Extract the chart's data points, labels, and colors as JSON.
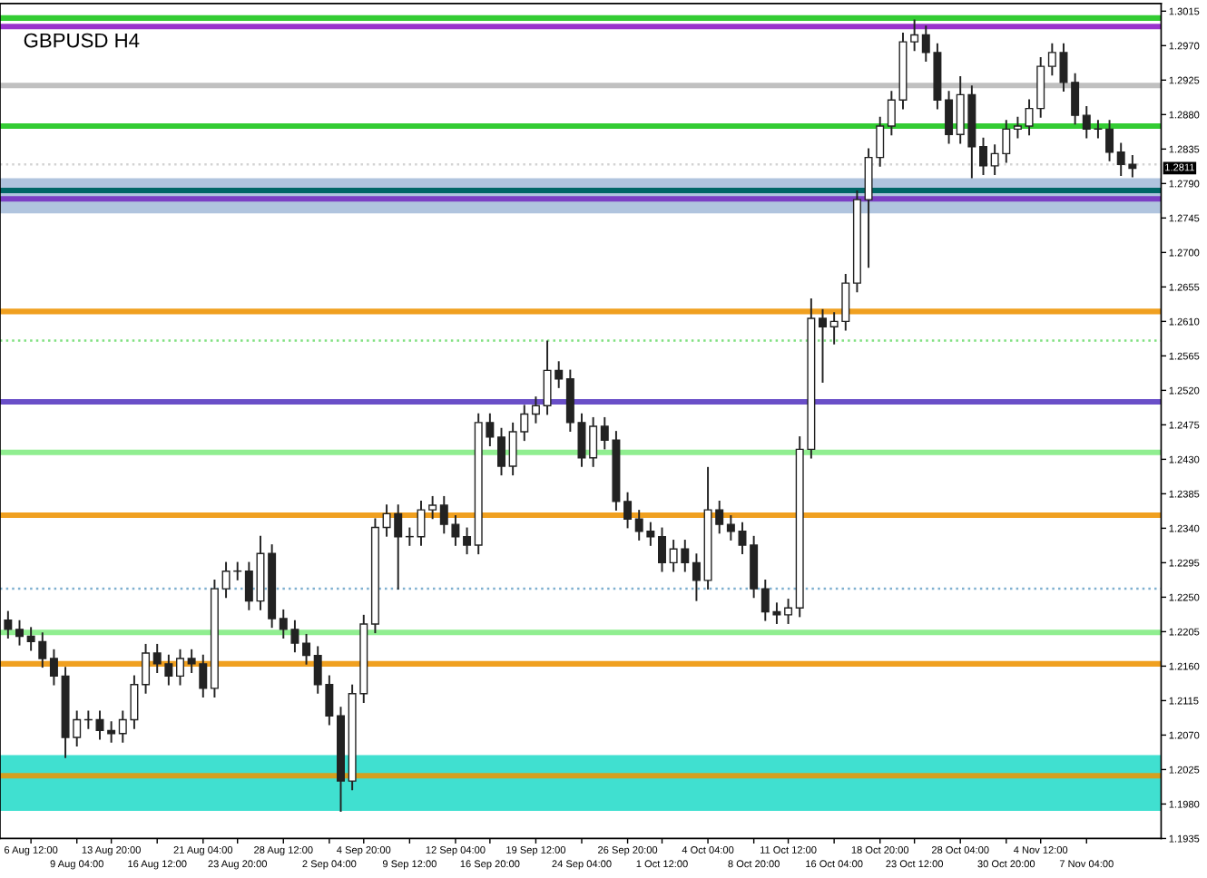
{
  "chart_data": {
    "type": "candlestick",
    "title": "GBPUSD H4",
    "categories": [
      null,
      null,
      "6 Aug 12:00",
      null,
      null,
      null,
      "9 Aug 04:00",
      null,
      null,
      "13 Aug 20:00",
      null,
      null,
      null,
      "16 Aug 12:00",
      null,
      null,
      null,
      "21 Aug 04:00",
      null,
      null,
      "23 Aug 20:00",
      null,
      null,
      null,
      "28 Aug 12:00",
      null,
      null,
      null,
      "2 Sep 04:00",
      null,
      null,
      "4 Sep 20:00",
      null,
      null,
      null,
      "9 Sep 12:00",
      null,
      null,
      null,
      "12 Sep 04:00",
      null,
      null,
      "16 Sep 20:00",
      null,
      null,
      null,
      "19 Sep 12:00",
      null,
      null,
      null,
      "24 Sep 04:00",
      null,
      null,
      null,
      "26 Sep 20:00",
      null,
      null,
      "1 Oct 12:00",
      null,
      null,
      null,
      "4 Oct 04:00",
      null,
      null,
      null,
      "8 Oct 20:00",
      null,
      null,
      "11 Oct 12:00",
      null,
      null,
      null,
      "16 Oct 04:00",
      null,
      null,
      null,
      "18 Oct 20:00",
      null,
      null,
      "23 Oct 12:00",
      null,
      null,
      null,
      "28 Oct 04:00",
      null,
      null,
      null,
      "30 Oct 20:00",
      null,
      null,
      "4 Nov 12:00",
      null,
      null,
      null,
      "7 Nov 04:00",
      null,
      null,
      null,
      null
    ],
    "ohlc": [
      [
        1.222,
        1.2232,
        1.2196,
        1.2208
      ],
      [
        1.2208,
        1.222,
        1.2187,
        1.2199
      ],
      [
        1.2199,
        1.2211,
        1.218,
        1.2192
      ],
      [
        1.2192,
        1.2204,
        1.2158,
        1.217
      ],
      [
        1.217,
        1.2182,
        1.2135,
        1.2147
      ],
      [
        1.2147,
        1.2159,
        1.204,
        1.2067
      ],
      [
        1.2067,
        1.2102,
        1.2055,
        1.209
      ],
      [
        1.209,
        1.2102,
        1.2078,
        1.209
      ],
      [
        1.209,
        1.2102,
        1.2064,
        1.2076
      ],
      [
        1.2076,
        1.2088,
        1.206,
        1.2072
      ],
      [
        1.2072,
        1.2102,
        1.206,
        1.209
      ],
      [
        1.209,
        1.2148,
        1.2078,
        1.2136
      ],
      [
        1.2136,
        1.2189,
        1.2124,
        1.2177
      ],
      [
        1.2177,
        1.2189,
        1.2151,
        1.2163
      ],
      [
        1.2163,
        1.2175,
        1.2135,
        1.2147
      ],
      [
        1.2147,
        1.2182,
        1.2135,
        1.217
      ],
      [
        1.217,
        1.2182,
        1.2151,
        1.2163
      ],
      [
        1.2163,
        1.2175,
        1.2119,
        1.2131
      ],
      [
        1.2131,
        1.2273,
        1.2119,
        1.2261
      ],
      [
        1.2261,
        1.2296,
        1.2249,
        1.2284
      ],
      [
        1.2284,
        1.2296,
        1.2272,
        1.2284
      ],
      [
        1.2284,
        1.2296,
        1.2233,
        1.2245
      ],
      [
        1.2245,
        1.233,
        1.2233,
        1.2307
      ],
      [
        1.2307,
        1.2319,
        1.221,
        1.2222
      ],
      [
        1.2222,
        1.2234,
        1.2196,
        1.2208
      ],
      [
        1.2208,
        1.222,
        1.2178,
        1.219
      ],
      [
        1.219,
        1.2202,
        1.2162,
        1.2174
      ],
      [
        1.2174,
        1.2186,
        1.2124,
        1.2136
      ],
      [
        1.2136,
        1.2148,
        1.2083,
        1.2095
      ],
      [
        1.2095,
        1.2107,
        1.197,
        1.201
      ],
      [
        1.201,
        1.2136,
        1.1998,
        1.2124
      ],
      [
        1.2124,
        1.2227,
        1.2112,
        1.2215
      ],
      [
        1.2215,
        1.2353,
        1.2203,
        1.2341
      ],
      [
        1.2341,
        1.2371,
        1.2329,
        1.2359
      ],
      [
        1.2359,
        1.2371,
        1.226,
        1.2329
      ],
      [
        1.2329,
        1.2341,
        1.2317,
        1.2329
      ],
      [
        1.2329,
        1.2376,
        1.2317,
        1.2364
      ],
      [
        1.2364,
        1.2382,
        1.2352,
        1.237
      ],
      [
        1.237,
        1.2382,
        1.2333,
        1.2345
      ],
      [
        1.2345,
        1.2357,
        1.2317,
        1.2329
      ],
      [
        1.2329,
        1.2341,
        1.2306,
        1.2318
      ],
      [
        1.2318,
        1.249,
        1.2306,
        1.2478
      ],
      [
        1.2478,
        1.249,
        1.2447,
        1.2459
      ],
      [
        1.2459,
        1.2471,
        1.2409,
        1.2421
      ],
      [
        1.2421,
        1.2478,
        1.2409,
        1.2466
      ],
      [
        1.2466,
        1.2501,
        1.2454,
        1.2489
      ],
      [
        1.2489,
        1.2512,
        1.2477,
        1.25
      ],
      [
        1.25,
        1.2585,
        1.2488,
        1.2546
      ],
      [
        1.2546,
        1.2558,
        1.2523,
        1.2535
      ],
      [
        1.2535,
        1.2547,
        1.2466,
        1.2478
      ],
      [
        1.2478,
        1.249,
        1.242,
        1.2432
      ],
      [
        1.2432,
        1.2485,
        1.242,
        1.2473
      ],
      [
        1.2473,
        1.2485,
        1.2443,
        1.2455
      ],
      [
        1.2455,
        1.2467,
        1.2363,
        1.2375
      ],
      [
        1.2375,
        1.2387,
        1.234,
        1.2352
      ],
      [
        1.2352,
        1.2364,
        1.2324,
        1.2336
      ],
      [
        1.2336,
        1.2348,
        1.2317,
        1.2329
      ],
      [
        1.2329,
        1.2341,
        1.2283,
        1.2295
      ],
      [
        1.2295,
        1.2325,
        1.2283,
        1.2313
      ],
      [
        1.2313,
        1.2325,
        1.2283,
        1.2295
      ],
      [
        1.2295,
        1.2307,
        1.2245,
        1.2272
      ],
      [
        1.2272,
        1.242,
        1.226,
        1.2364
      ],
      [
        1.2364,
        1.2376,
        1.2333,
        1.2345
      ],
      [
        1.2345,
        1.2357,
        1.2324,
        1.2336
      ],
      [
        1.2336,
        1.2348,
        1.2306,
        1.2318
      ],
      [
        1.2318,
        1.233,
        1.2249,
        1.2261
      ],
      [
        1.2261,
        1.2273,
        1.2219,
        1.2231
      ],
      [
        1.2231,
        1.2243,
        1.2215,
        1.2227
      ],
      [
        1.2227,
        1.2248,
        1.2215,
        1.2236
      ],
      [
        1.2236,
        1.246,
        1.2224,
        1.2443
      ],
      [
        1.2443,
        1.264,
        1.2431,
        1.2614
      ],
      [
        1.2614,
        1.2626,
        1.253,
        1.2603
      ],
      [
        1.2603,
        1.2622,
        1.258,
        1.261
      ],
      [
        1.261,
        1.2672,
        1.2598,
        1.266
      ],
      [
        1.266,
        1.2781,
        1.2648,
        1.2769
      ],
      [
        1.2769,
        1.2836,
        1.268,
        1.2824
      ],
      [
        1.2824,
        1.2877,
        1.2812,
        1.2865
      ],
      [
        1.2865,
        1.2911,
        1.2853,
        1.2899
      ],
      [
        1.2899,
        1.2987,
        1.2887,
        1.2975
      ],
      [
        1.2975,
        1.3004,
        1.2963,
        1.2984
      ],
      [
        1.2984,
        1.2996,
        1.2949,
        1.2961
      ],
      [
        1.2961,
        1.2973,
        1.2887,
        1.2899
      ],
      [
        1.2899,
        1.2911,
        1.2842,
        1.2854
      ],
      [
        1.2854,
        1.293,
        1.2842,
        1.2906
      ],
      [
        1.2906,
        1.2918,
        1.2797,
        1.2838
      ],
      [
        1.2838,
        1.285,
        1.2801,
        1.2813
      ],
      [
        1.2813,
        1.2841,
        1.2801,
        1.2829
      ],
      [
        1.2829,
        1.2873,
        1.2817,
        1.2861
      ],
      [
        1.2861,
        1.2877,
        1.2849,
        1.2865
      ],
      [
        1.2865,
        1.29,
        1.2853,
        1.2888
      ],
      [
        1.2888,
        1.2955,
        1.2876,
        1.2943
      ],
      [
        1.2943,
        1.2973,
        1.2931,
        1.2961
      ],
      [
        1.2961,
        1.2973,
        1.291,
        1.2922
      ],
      [
        1.2922,
        1.2934,
        1.2867,
        1.2879
      ],
      [
        1.2879,
        1.2891,
        1.2849,
        1.2861
      ],
      [
        1.2861,
        1.2873,
        1.2849,
        1.2861
      ],
      [
        1.2861,
        1.2873,
        1.2819,
        1.2831
      ],
      [
        1.2831,
        1.2843,
        1.28,
        1.2815
      ],
      [
        1.2815,
        1.2827,
        1.2798,
        1.281
      ]
    ],
    "ylim": [
      1.1935,
      1.3025
    ],
    "yticks": [
      1.1935,
      {
        "value": 1.198,
        "label": "1.1980"
      },
      1.2025,
      {
        "value": 1.207,
        "label": "1.2070"
      },
      1.2115,
      {
        "value": 1.216,
        "label": "1.2160"
      },
      1.2205,
      {
        "value": 1.225,
        "label": "1.2250"
      },
      1.2295,
      {
        "value": 1.234,
        "label": "1.2340"
      },
      1.2385,
      {
        "value": 1.243,
        "label": "1.2430"
      },
      1.2475,
      {
        "value": 1.252,
        "label": "1.2520"
      },
      1.2565,
      {
        "value": 1.261,
        "label": "1.2610"
      },
      1.2655,
      {
        "value": 1.27,
        "label": "1.2700"
      },
      1.2745,
      {
        "value": 1.279,
        "label": "1.2790"
      },
      1.2835,
      {
        "value": 1.288,
        "label": "1.2880"
      },
      1.2925,
      {
        "value": 1.297,
        "label": "1.2970"
      },
      1.3015
    ],
    "bands": [
      {
        "axis": "y",
        "from": 1.2751,
        "to": 1.2797,
        "color": "#b0c4de"
      },
      {
        "axis": "y",
        "from": 1.1971,
        "to": 1.2044,
        "color": "#40e0d0"
      }
    ],
    "ref_lines": [
      {
        "axis": "y",
        "value": 1.3006,
        "color": "#33cc33"
      },
      {
        "axis": "y",
        "value": 1.2995,
        "color": "#9933cc"
      },
      {
        "axis": "y",
        "value": 1.2918,
        "color": "#c0c0c0"
      },
      {
        "axis": "y",
        "value": 1.2865,
        "color": "#33cc33"
      },
      {
        "axis": "y",
        "value": 1.2815,
        "color": "#d3d3d3",
        "line_style": "dotted"
      },
      {
        "axis": "y",
        "value": 1.2781,
        "color": "#006666"
      },
      {
        "axis": "y",
        "value": 1.277,
        "color": "#7b3fc4"
      },
      {
        "axis": "y",
        "value": 1.2623,
        "color": "#f0a020"
      },
      {
        "axis": "y",
        "value": 1.2585,
        "color": "#7fe07f",
        "line_style": "dotted"
      },
      {
        "axis": "y",
        "value": 1.2505,
        "color": "#6a4fc8"
      },
      {
        "axis": "y",
        "value": 1.2439,
        "color": "#90ee90"
      },
      {
        "axis": "y",
        "value": 1.2357,
        "color": "#f0a020"
      },
      {
        "axis": "y",
        "value": 1.2261,
        "color": "#7fb0d0",
        "line_style": "dotted"
      },
      {
        "axis": "y",
        "value": 1.2204,
        "color": "#90ee90"
      },
      {
        "axis": "y",
        "value": 1.2163,
        "color": "#f0a020"
      },
      {
        "axis": "y",
        "value": 1.2017,
        "color": "#d4a020"
      }
    ],
    "annotations": [
      "1.2811"
    ],
    "grid": false
  }
}
